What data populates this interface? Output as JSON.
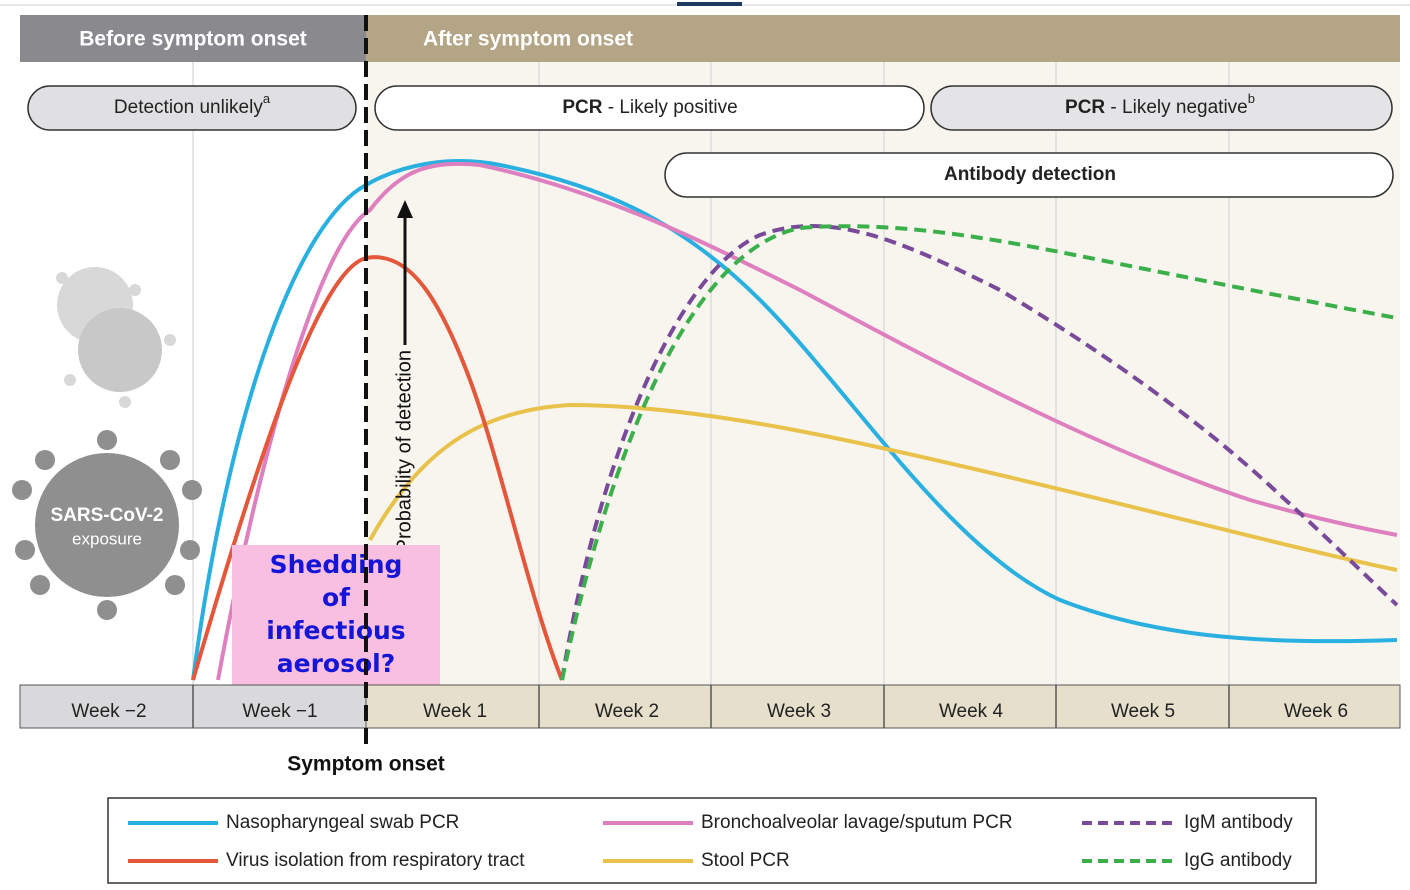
{
  "header": {
    "before": "Before symptom onset",
    "after": "After symptom onset"
  },
  "bands": [
    {
      "text": "Detection unlikely",
      "sup": "a"
    },
    {
      "bold": "PCR",
      "text": " - Likely positive"
    },
    {
      "bold": "PCR",
      "text": " - Likely negative",
      "sup": "b"
    },
    {
      "bold": "Antibody detection"
    }
  ],
  "y_axis_label": "Probability of detection",
  "exposure": {
    "line1": "SARS-CoV-2",
    "line2": "exposure"
  },
  "overlay": [
    "Shedding",
    "of",
    "infectious",
    "aerosol?"
  ],
  "weeks": [
    "Week −2",
    "Week −1",
    "Week 1",
    "Week 2",
    "Week 3",
    "Week 4",
    "Week 5",
    "Week 6"
  ],
  "onset_label": "Symptom onset",
  "legend": [
    "Nasopharyngeal swab PCR",
    "Bronchoalveolar lavage/sputum PCR",
    "IgM antibody",
    "Virus isolation from respiratory tract",
    "Stool PCR",
    "IgG antibody"
  ]
}
